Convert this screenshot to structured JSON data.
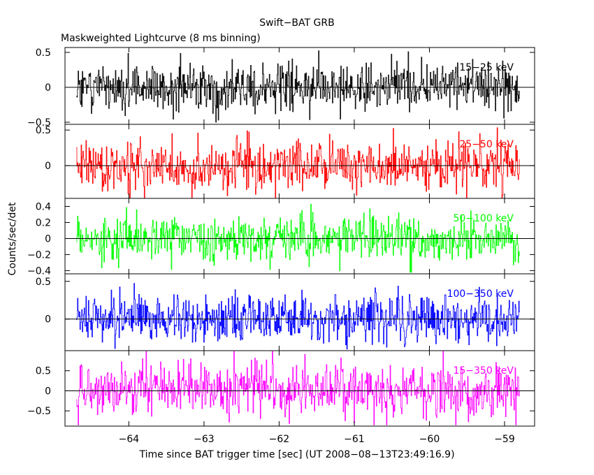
{
  "chart_data": {
    "type": "line",
    "title": "Swift−BAT GRB",
    "subtitle": "Maskweighted Lightcurve (8 ms binning)",
    "xlabel": "Time since BAT trigger time [sec] (UT 2008−08−13T23:49:16.9)",
    "ylabel": "Counts/sec/det",
    "xlim": [
      -64.85,
      -58.6
    ],
    "xticks": [
      -64,
      -63,
      -62,
      -61,
      -60,
      -59
    ],
    "xtick_labels": [
      "−64",
      "−63",
      "−62",
      "−61",
      "−60",
      "−59"
    ],
    "data_range": [
      -64.7,
      -58.8
    ],
    "bin_width": 0.008,
    "grid": false,
    "panels": [
      {
        "name": "15−25 keV",
        "color": "#000000",
        "ylim": [
          -0.53,
          0.57
        ],
        "yticks": [
          -0.5,
          0,
          0.5
        ],
        "ytick_labels": [
          "−0.5",
          "0",
          "0.5"
        ],
        "noise_sigma": 0.18,
        "clip": [
          -0.5,
          0.55
        ]
      },
      {
        "name": "25−50 keV",
        "color": "#ff0000",
        "ylim": [
          -0.46,
          0.58
        ],
        "yticks": [
          0,
          0.5
        ],
        "ytick_labels": [
          "0",
          "0.5"
        ],
        "noise_sigma": 0.17,
        "clip": [
          -0.45,
          0.55
        ]
      },
      {
        "name": "50−100 keV",
        "color": "#00ff00",
        "ylim": [
          -0.44,
          0.5
        ],
        "yticks": [
          -0.4,
          -0.2,
          0,
          0.2,
          0.4
        ],
        "ytick_labels": [
          "−0.4",
          "−0.2",
          "0",
          "0.2",
          "0.4"
        ],
        "noise_sigma": 0.14,
        "clip": [
          -0.42,
          0.48
        ]
      },
      {
        "name": "100−350 keV",
        "color": "#0000ff",
        "ylim": [
          -0.42,
          0.6
        ],
        "yticks": [
          0,
          0.5
        ],
        "ytick_labels": [
          "0",
          "0.5"
        ],
        "noise_sigma": 0.16,
        "clip": [
          -0.4,
          0.58
        ]
      },
      {
        "name": "15−350 keV",
        "color": "#ff00ff",
        "ylim": [
          -0.88,
          1.0
        ],
        "yticks": [
          -0.5,
          0,
          0.5
        ],
        "ytick_labels": [
          "−0.5",
          "0",
          "0.5"
        ],
        "noise_sigma": 0.32,
        "clip": [
          -0.85,
          0.98
        ]
      }
    ]
  }
}
